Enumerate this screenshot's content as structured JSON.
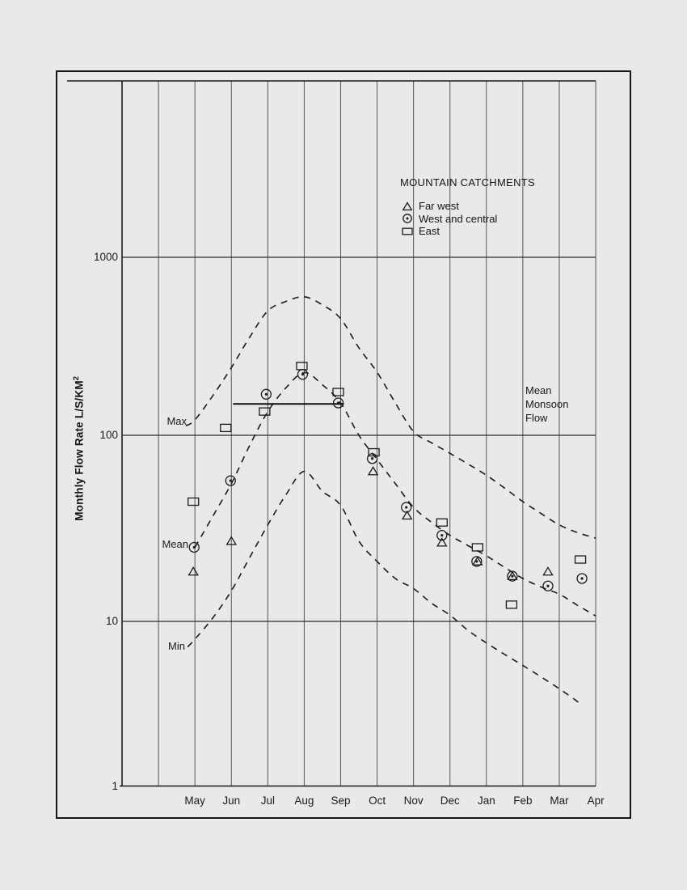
{
  "figure": {
    "y_axis_title": "Monthly Flow Rate L/S/KM",
    "y_axis_title_exponent": "2",
    "curve_labels": {
      "max": "Max",
      "mean": "Mean",
      "min": "Min"
    },
    "annotation": {
      "line1": "Mean",
      "line2": "Monsoon",
      "line3": "Flow"
    },
    "legend": {
      "title": "MOUNTAIN CATCHMENTS",
      "items": [
        {
          "marker": "triangle",
          "label": "Far west"
        },
        {
          "marker": "circle-dot",
          "label": "West and central"
        },
        {
          "marker": "square",
          "label": "East"
        }
      ]
    }
  },
  "chart_data": {
    "type": "scatter",
    "title": "MOUNTAIN CATCHMENTS",
    "ylabel": "Monthly Flow Rate L/S/KM2",
    "xlabel": "",
    "y_scale": "log",
    "ylim": [
      1,
      10000
    ],
    "y_ticks": [
      "1000",
      "100",
      "10",
      "1"
    ],
    "categories": [
      "May",
      "Jun",
      "Jul",
      "Aug",
      "Sep",
      "Oct",
      "Nov",
      "Dec",
      "Jan",
      "Feb",
      "Mar",
      "Apr"
    ],
    "series": [
      {
        "name": "Far west",
        "marker": "triangle",
        "points": [
          {
            "month": "May",
            "value": 18.5,
            "dx": -2
          },
          {
            "month": "Jun",
            "value": 27,
            "dx": 0
          },
          {
            "month": "Oct",
            "value": 64,
            "dx": -5
          },
          {
            "month": "Nov",
            "value": 37,
            "dx": -8
          },
          {
            "month": "Dec",
            "value": 26.5,
            "dx": -10
          },
          {
            "month": "Jan",
            "value": 21,
            "dx": -11
          },
          {
            "month": "Feb",
            "value": 17.5,
            "dx": -13
          },
          {
            "month": "Mar",
            "value": 18.5,
            "dx": -14
          }
        ]
      },
      {
        "name": "West and central",
        "marker": "circle-dot",
        "points": [
          {
            "month": "May",
            "value": 25,
            "dx": -1
          },
          {
            "month": "Jun",
            "value": 57,
            "dx": -1
          },
          {
            "month": "Jul",
            "value": 170,
            "dx": -2
          },
          {
            "month": "Aug",
            "value": 220,
            "dx": -2
          },
          {
            "month": "Sep",
            "value": 152,
            "dx": -3
          },
          {
            "month": "Oct",
            "value": 75,
            "dx": -6
          },
          {
            "month": "Nov",
            "value": 41,
            "dx": -9
          },
          {
            "month": "Dec",
            "value": 29,
            "dx": -10
          },
          {
            "month": "Jan",
            "value": 21,
            "dx": -12
          },
          {
            "month": "Feb",
            "value": 17.5,
            "dx": -13
          },
          {
            "month": "Mar",
            "value": 15.5,
            "dx": -14
          },
          {
            "month": "Apr",
            "value": 17,
            "dx": -17
          }
        ]
      },
      {
        "name": "East",
        "marker": "square",
        "points": [
          {
            "month": "May",
            "value": 44,
            "dx": -2
          },
          {
            "month": "Jun",
            "value": 110,
            "dx": -7
          },
          {
            "month": "Jul",
            "value": 136,
            "dx": -4
          },
          {
            "month": "Aug",
            "value": 245,
            "dx": -3
          },
          {
            "month": "Sep",
            "value": 175,
            "dx": -3
          },
          {
            "month": "Oct",
            "value": 81,
            "dx": -4
          },
          {
            "month": "Dec",
            "value": 34,
            "dx": -10
          },
          {
            "month": "Jan",
            "value": 25,
            "dx": -11
          },
          {
            "month": "Feb",
            "value": 12.3,
            "dx": -14
          },
          {
            "month": "Apr",
            "value": 21.5,
            "dx": -19
          }
        ]
      }
    ],
    "envelopes": [
      {
        "name": "Max",
        "points": [
          [
            -0.25,
            113
          ],
          [
            0,
            122
          ],
          [
            0.5,
            168
          ],
          [
            1,
            240
          ],
          [
            1.5,
            355
          ],
          [
            2,
            500
          ],
          [
            2.5,
            565
          ],
          [
            3,
            600
          ],
          [
            3.5,
            540
          ],
          [
            4,
            452
          ],
          [
            4.5,
            310
          ],
          [
            5,
            226
          ],
          [
            5.5,
            152
          ],
          [
            6,
            105
          ],
          [
            6.5,
            91
          ],
          [
            7,
            80
          ],
          [
            7.5,
            70
          ],
          [
            8,
            61
          ],
          [
            8.5,
            52
          ],
          [
            9,
            44
          ],
          [
            9.5,
            38
          ],
          [
            10,
            33
          ],
          [
            10.5,
            30
          ],
          [
            11,
            28
          ]
        ]
      },
      {
        "name": "Mean",
        "points": [
          [
            0,
            25
          ],
          [
            0.5,
            37
          ],
          [
            1,
            55
          ],
          [
            1.5,
            88
          ],
          [
            2,
            136
          ],
          [
            2.5,
            185
          ],
          [
            3,
            225
          ],
          [
            3.5,
            192
          ],
          [
            4,
            152
          ],
          [
            4.5,
            100
          ],
          [
            5,
            74
          ],
          [
            5.5,
            55
          ],
          [
            6,
            41
          ],
          [
            6.5,
            34
          ],
          [
            7,
            29
          ],
          [
            7.5,
            25.5
          ],
          [
            8,
            22.5
          ],
          [
            8.5,
            19.5
          ],
          [
            9,
            17
          ],
          [
            9.5,
            15.3
          ],
          [
            10,
            14
          ],
          [
            10.5,
            12.2
          ],
          [
            11,
            10.7
          ]
        ]
      },
      {
        "name": "Min",
        "points": [
          [
            -0.2,
            7.0
          ],
          [
            0,
            7.8
          ],
          [
            0.5,
            10.5
          ],
          [
            1,
            14.6
          ],
          [
            1.5,
            22
          ],
          [
            2,
            33
          ],
          [
            2.5,
            48
          ],
          [
            3,
            64
          ],
          [
            3.5,
            50
          ],
          [
            4,
            42
          ],
          [
            4.5,
            27
          ],
          [
            5,
            21
          ],
          [
            5.5,
            17
          ],
          [
            6,
            15
          ],
          [
            6.5,
            12.5
          ],
          [
            7,
            10.8
          ],
          [
            7.5,
            8.8
          ],
          [
            8,
            7.4
          ],
          [
            8.5,
            6.3
          ],
          [
            9,
            5.4
          ],
          [
            9.5,
            4.6
          ],
          [
            10,
            3.9
          ],
          [
            10.55,
            3.2
          ]
        ]
      }
    ],
    "mean_monsoon_line": {
      "value": 150,
      "from_month": "Jun",
      "to_month": "Sep"
    },
    "colors": {
      "ink": "#1b1b1b",
      "grid": "#555555",
      "paper": "#e9e9e9"
    }
  }
}
